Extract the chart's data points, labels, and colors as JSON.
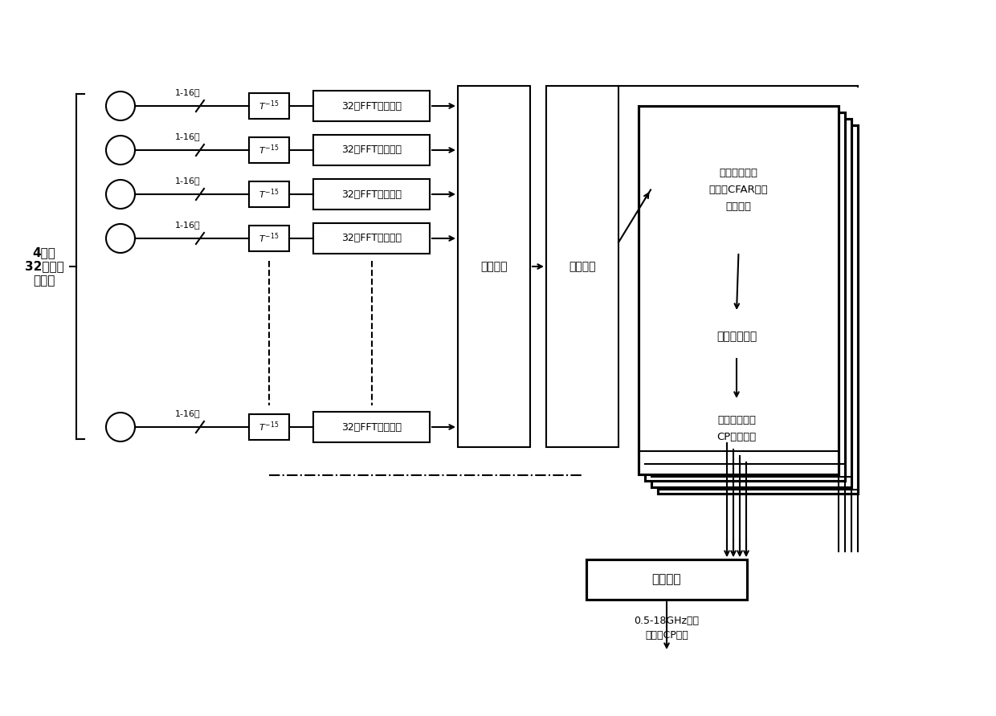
{
  "bg_color": "#ffffff",
  "line_color": "#000000",
  "text_color": "#000000",
  "left_label": [
    "4通道",
    "32路并行",
    "数据流"
  ],
  "channel_labels": [
    "1-16位",
    "1-16位",
    "1-16位",
    "1-16位"
  ],
  "channel_label_last": "1-16位",
  "delay_label": "T^{-15}",
  "fft_label": "32点FFT运算模块",
  "butterfly_label": "蝶形运算",
  "demux_label": "分解电路",
  "box1_lines": [
    "噪声门限计算",
    "恒虚警CFAR检测",
    "极值寻找"
  ],
  "box2_label": "最大信号计算",
  "box3_lines": [
    "相位差法测频",
    "CP脉冲恢复"
  ],
  "fusion_label": "数据融合",
  "output_lines": [
    "0.5-18GHz测频",
    "信息和CP脉冲"
  ],
  "num_channels": 4,
  "num_layers": 4
}
